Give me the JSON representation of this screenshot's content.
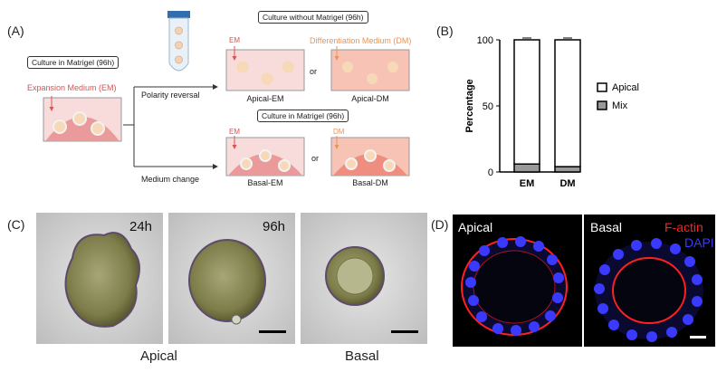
{
  "panels": {
    "a": "(A)",
    "b": "(B)",
    "c": "(C)",
    "d": "(D)"
  },
  "schematic": {
    "matrigel_box": "Culture in Matrigel (96h)",
    "expansion_medium": "Expansion Medium (EM)",
    "without_matrigel_box": "Culture without Matrigel (96h)",
    "matrigel_box_2": "Culture in Matrigel (96h)",
    "em": "EM",
    "dm_full": "Differentiation Medium (DM)",
    "dm": "DM",
    "or_top": "or",
    "or_bottom": "or",
    "polarity_reversal": "Polarity reversal",
    "medium_change": "Medium change",
    "apical_em": "Apical-EM",
    "apical_dm": "Apical-DM",
    "basal_em": "Basal-EM",
    "basal_dm": "Basal-DM"
  },
  "chart_data": {
    "type": "bar",
    "stacked": true,
    "categories": [
      "EM",
      "DM"
    ],
    "series": [
      {
        "name": "Mix",
        "values": [
          6,
          4
        ],
        "color": "#999999"
      },
      {
        "name": "Apical",
        "values": [
          94,
          96
        ],
        "color": "#ffffff"
      }
    ],
    "ylabel": "Percentage",
    "yticks": [
      0,
      50,
      100
    ],
    "ylim": [
      0,
      100
    ],
    "legend": [
      "Apical",
      "Mix"
    ],
    "legend_position": "right"
  },
  "micrographs": {
    "t24": "24h",
    "t96": "96h",
    "apical": "Apical",
    "basal": "Basal"
  },
  "fluorescence": {
    "apical": "Apical",
    "basal": "Basal",
    "factin": "F-actin",
    "dapi": "DAPI",
    "factin_color": "#ff2020",
    "dapi_color": "#3a3aff"
  }
}
